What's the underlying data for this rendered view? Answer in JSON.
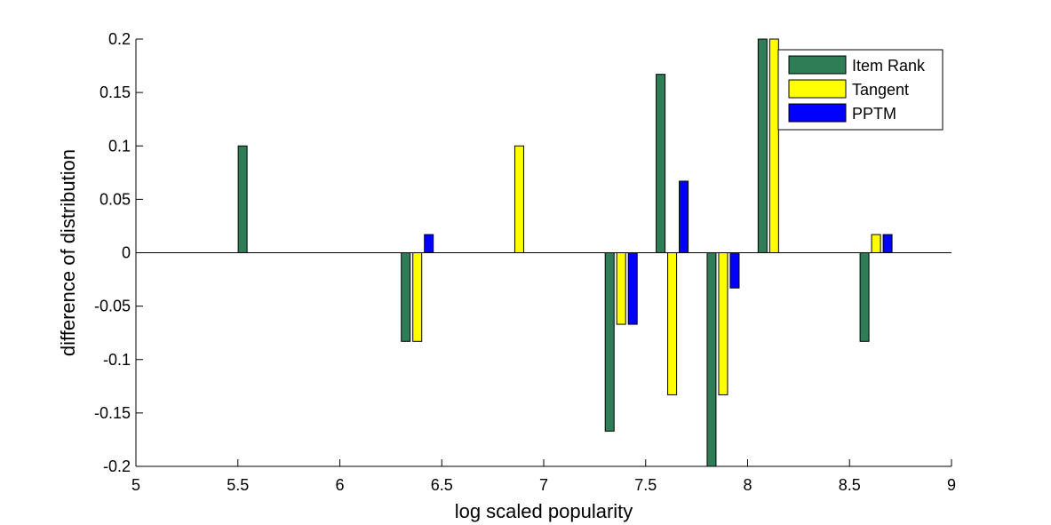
{
  "chart_data": {
    "type": "bar",
    "xlabel": "log scaled popularity",
    "ylabel": "difference of distribution",
    "xlim": [
      5,
      9
    ],
    "ylim": [
      -0.2,
      0.2
    ],
    "xticks": [
      "5",
      "5.5",
      "6",
      "6.5",
      "7",
      "7.5",
      "8",
      "8.5",
      "9"
    ],
    "yticks": [
      "-0.2",
      "-0.15",
      "-0.1",
      "-0.05",
      "0",
      "0.05",
      "0.1",
      "0.15",
      "0.2"
    ],
    "x": [
      5.58,
      6.38,
      6.88,
      7.38,
      7.63,
      7.88,
      8.13,
      8.63
    ],
    "series": [
      {
        "name": "Item Rank",
        "color": "#2e7d57",
        "values": [
          0.1,
          -0.083,
          0,
          -0.167,
          0.167,
          -0.2,
          0.2,
          -0.083
        ]
      },
      {
        "name": "Tangent",
        "color": "#ffff00",
        "values": [
          0,
          -0.083,
          0.1,
          -0.067,
          -0.133,
          -0.133,
          0.2,
          0.017
        ]
      },
      {
        "name": "PPTM",
        "color": "#0000ff",
        "values": [
          0,
          0.017,
          0,
          -0.067,
          0.067,
          -0.033,
          0,
          0.017
        ]
      }
    ],
    "legend_position": "top-right",
    "grid": false
  }
}
